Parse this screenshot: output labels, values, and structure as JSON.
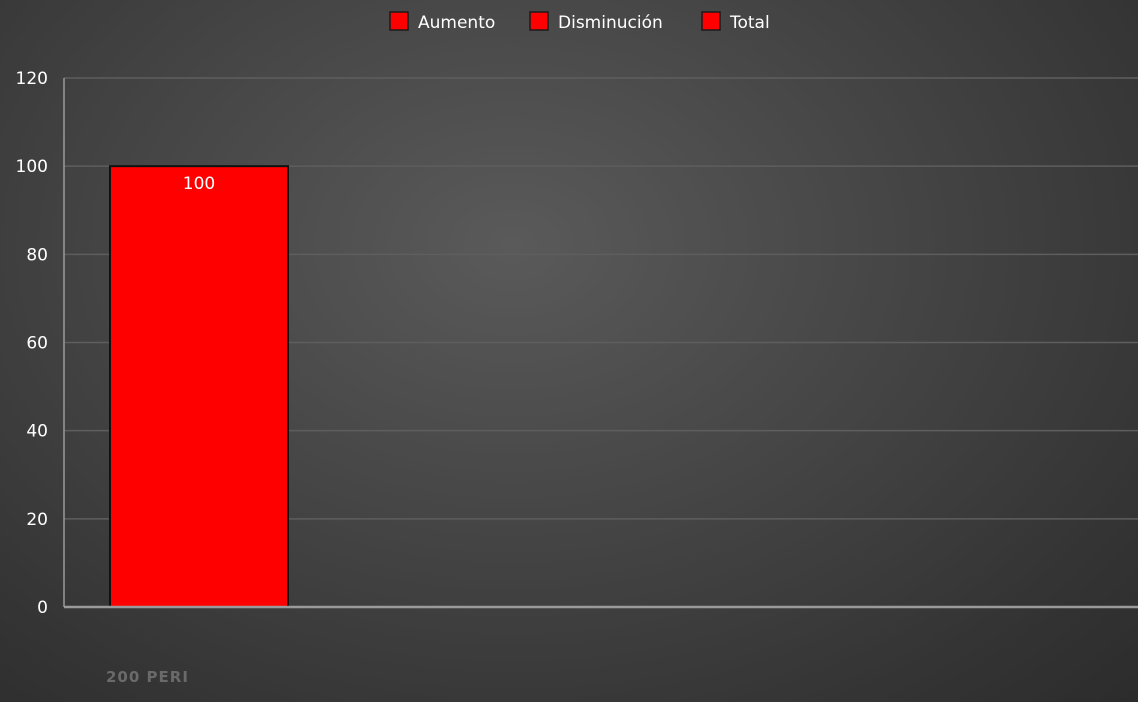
{
  "chart_data": {
    "type": "bar",
    "title": "",
    "xlabel": "",
    "ylabel": "",
    "categories": [
      "200 PERI"
    ],
    "series": [
      {
        "name": "Aumento",
        "values": [
          0
        ]
      },
      {
        "name": "Disminución",
        "values": [
          0
        ]
      },
      {
        "name": "Total",
        "values": [
          100
        ]
      }
    ],
    "data_labels": [
      "100"
    ],
    "ylim": [
      0,
      120
    ],
    "yticks": [
      0,
      20,
      40,
      60,
      80,
      100,
      120
    ],
    "grid": true,
    "legend_position": "top-center"
  },
  "colors": {
    "bar": "#ff0000",
    "legend_swatch": "#ff0000",
    "grid": "#5e5e5e",
    "axis": "#9a9a9a"
  }
}
